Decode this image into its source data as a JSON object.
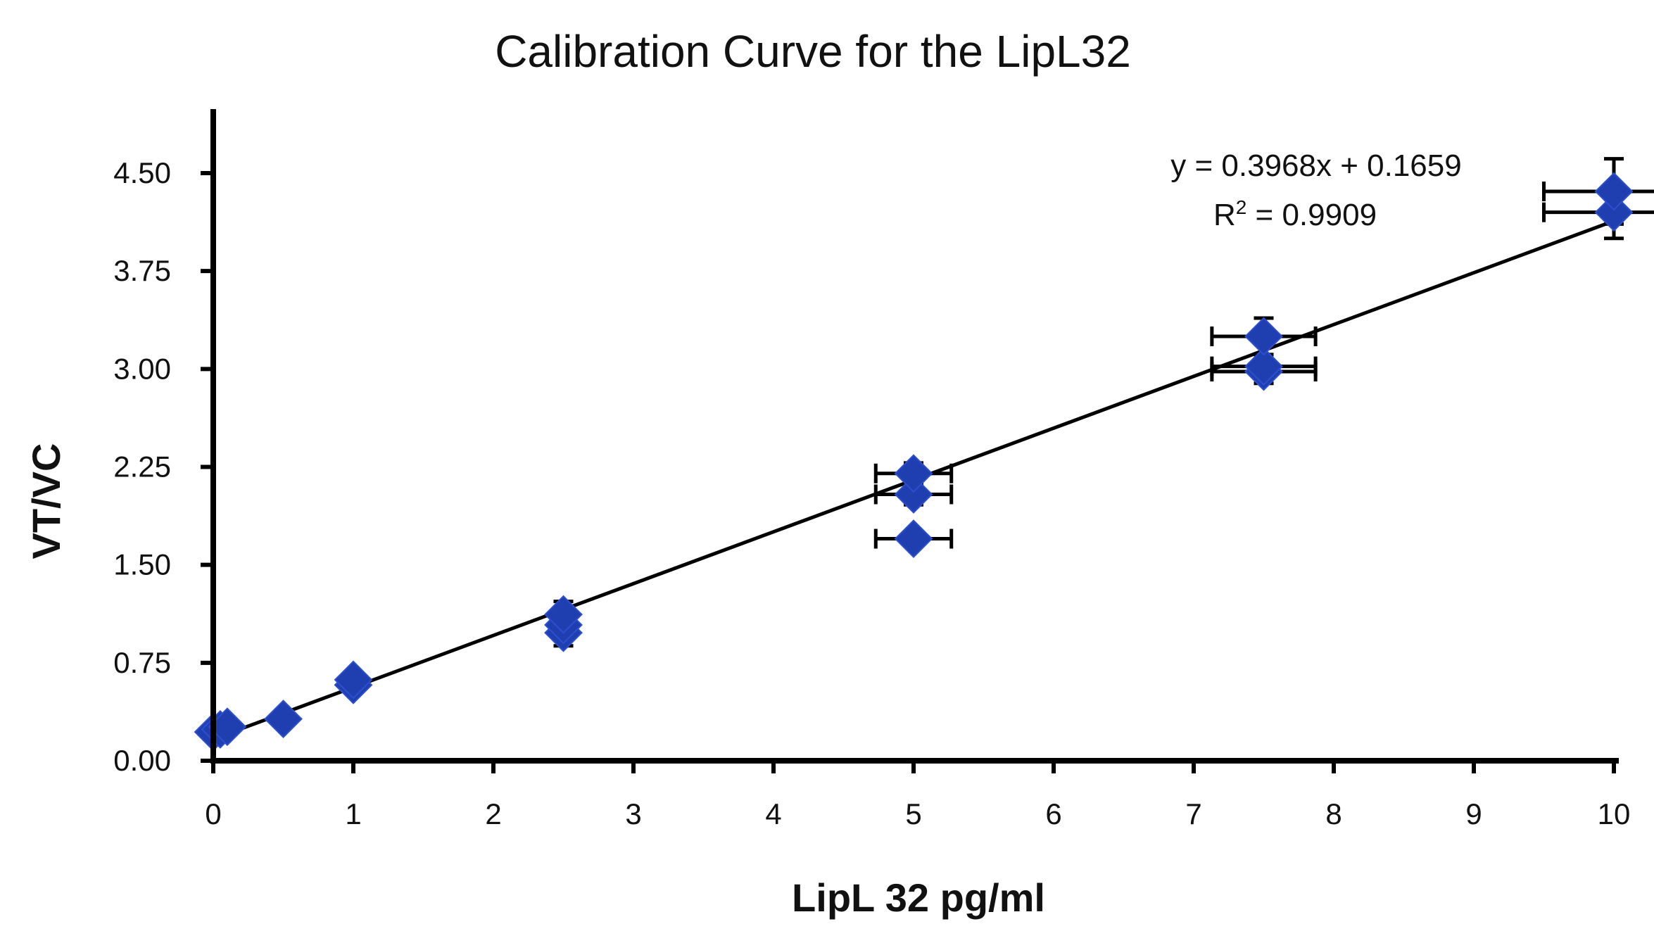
{
  "chart_data": {
    "type": "scatter",
    "title": "Calibration Curve for the  LipL32",
    "xlabel": "LipL 32 pg/ml",
    "ylabel": "VT/VC",
    "xlim": [
      0,
      10
    ],
    "ylim": [
      0,
      4.5
    ],
    "x_ticks": [
      "0",
      "1",
      "2",
      "3",
      "4",
      "5",
      "6",
      "7",
      "8",
      "9",
      "10"
    ],
    "y_ticks": [
      "0.00",
      "0.75",
      "1.50",
      "2.25",
      "3.00",
      "3.75",
      "4.50"
    ],
    "points": [
      {
        "x": 0,
        "y": 0.22,
        "x_err": 0,
        "y_err": 0
      },
      {
        "x": 0.05,
        "y": 0.24,
        "x_err": 0,
        "y_err": 0
      },
      {
        "x": 0.1,
        "y": 0.26,
        "x_err": 0,
        "y_err": 0
      },
      {
        "x": 0.5,
        "y": 0.32,
        "x_err": 0,
        "y_err": 0
      },
      {
        "x": 1,
        "y": 0.58,
        "x_err": 0,
        "y_err": 0
      },
      {
        "x": 1,
        "y": 0.62,
        "x_err": 0,
        "y_err": 0
      },
      {
        "x": 2.5,
        "y": 0.98,
        "x_err": 0,
        "y_err": 0.1
      },
      {
        "x": 2.5,
        "y": 1.04,
        "x_err": 0,
        "y_err": 0.1
      },
      {
        "x": 2.5,
        "y": 1.12,
        "x_err": 0,
        "y_err": 0.1
      },
      {
        "x": 5,
        "y": 1.7,
        "x_err": 0.27,
        "y_err": 0
      },
      {
        "x": 5,
        "y": 2.04,
        "x_err": 0.27,
        "y_err": 0.08
      },
      {
        "x": 5,
        "y": 2.2,
        "x_err": 0.27,
        "y_err": 0.08
      },
      {
        "x": 7.5,
        "y": 2.98,
        "x_err": 0.37,
        "y_err": 0.09
      },
      {
        "x": 7.5,
        "y": 3.02,
        "x_err": 0.37,
        "y_err": 0.09
      },
      {
        "x": 7.5,
        "y": 3.25,
        "x_err": 0.37,
        "y_err": 0.14
      },
      {
        "x": 10,
        "y": 4.2,
        "x_err": 0.5,
        "y_err": 0.2
      },
      {
        "x": 10,
        "y": 4.36,
        "x_err": 0.5,
        "y_err": 0.25
      }
    ],
    "trendline": {
      "slope": 0.3968,
      "intercept": 0.1659,
      "equation": "y = 0.3968x + 0.1659",
      "r_squared_label": "R",
      "r_squared_sup": "2",
      "r_squared_value": " = 0.9909"
    },
    "marker_color": "#1f3fb0",
    "line_color": "#000000",
    "grid": false
  }
}
